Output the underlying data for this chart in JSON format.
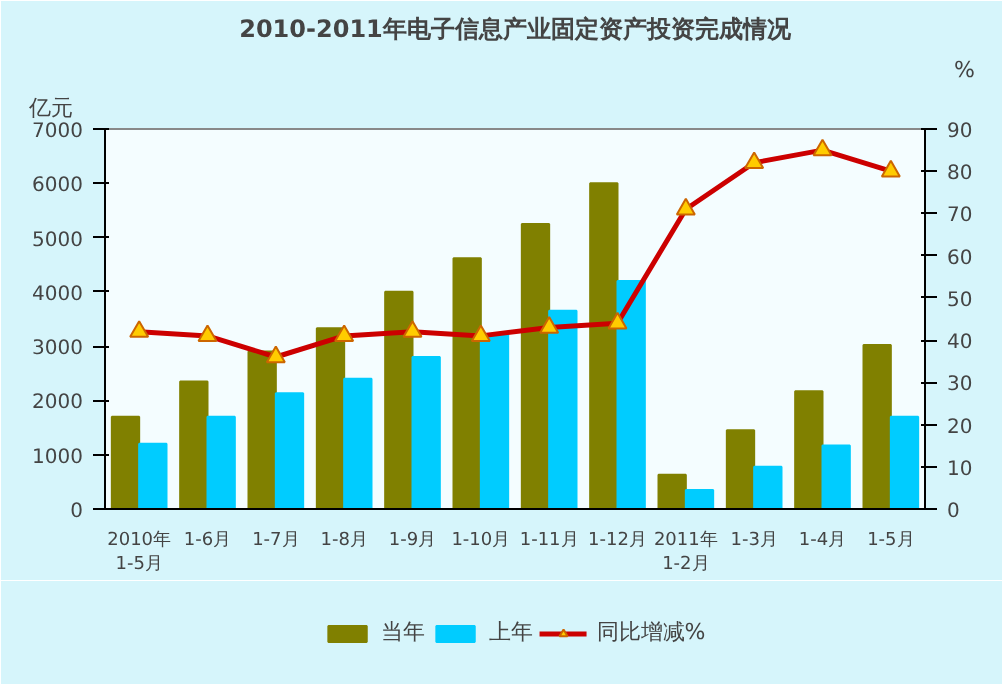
{
  "chart_data": {
    "type": "bar",
    "title": "2010-2011年电子信息产业固定资产投资完成情况",
    "ylabel": "亿元",
    "y2label": "%",
    "categories": [
      "2010年\n1-5月",
      "1-6月",
      "1-7月",
      "1-8月",
      "1-9月",
      "1-10月",
      "1-11月",
      "1-12月",
      "2011年\n1-2月",
      "1-3月",
      "1-4月",
      "1-5月"
    ],
    "series": [
      {
        "name": "当年",
        "color": "#808000",
        "values": [
          1700,
          2350,
          2900,
          3330,
          4000,
          4620,
          5250,
          6000,
          630,
          1450,
          2170,
          3020
        ]
      },
      {
        "name": "上年",
        "color": "#00ccff",
        "values": [
          1200,
          1700,
          2130,
          2400,
          2800,
          3220,
          3650,
          4200,
          350,
          780,
          1170,
          1700
        ]
      },
      {
        "name": "同比增减%",
        "type": "line",
        "axis": "y2",
        "color": "#cc0000",
        "marker": "triangle",
        "values": [
          42,
          41,
          36,
          41,
          42,
          41,
          43,
          44,
          71,
          82,
          85,
          80
        ]
      }
    ],
    "ylim": [
      0,
      7000
    ],
    "yticks": [
      0,
      1000,
      2000,
      3000,
      4000,
      5000,
      6000,
      7000
    ],
    "y2lim": [
      0,
      90
    ],
    "y2ticks": [
      0,
      10,
      20,
      30,
      40,
      50,
      60,
      70,
      80,
      90
    ],
    "grid": false,
    "legend": "bottom"
  }
}
